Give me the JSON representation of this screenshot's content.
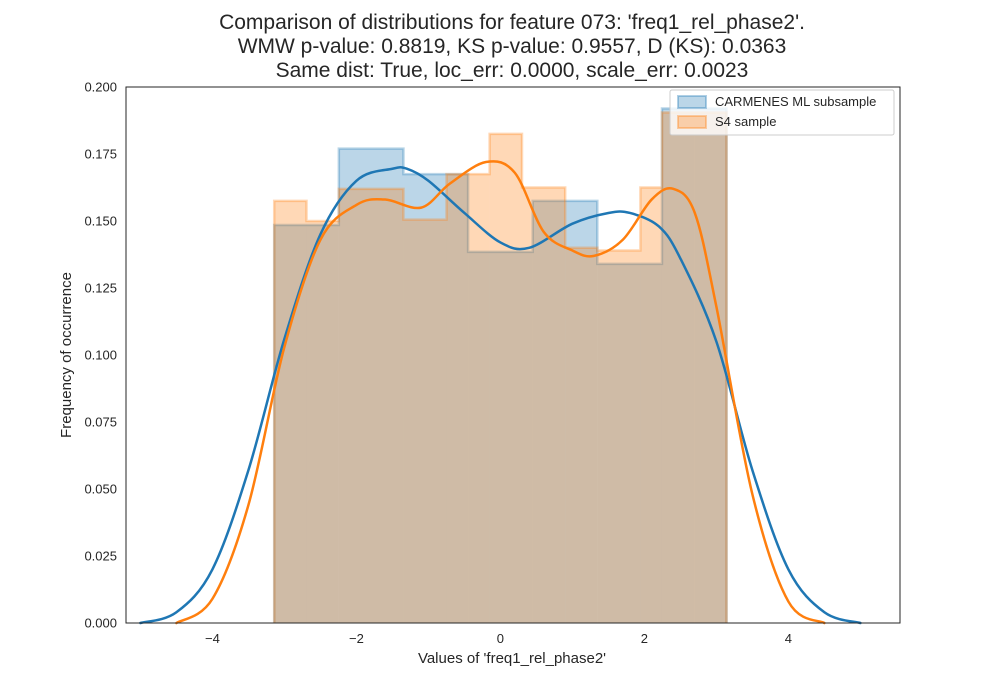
{
  "chart_data": {
    "type": "histogram",
    "title": [
      "Comparison of distributions for feature 073: 'freq1_rel_phase2'.",
      "WMW p-value: 0.8819, KS p-value: 0.9557, D (KS): 0.0363",
      "Same dist: True, loc_err: 0.0000, scale_err: 0.0023"
    ],
    "xlabel": "Values of 'freq1_rel_phase2'",
    "ylabel": "Frequency of occurrence",
    "xlim": [
      -5.2,
      5.55
    ],
    "ylim": [
      0.0,
      0.2
    ],
    "xticks": [
      -4,
      -2,
      0,
      2,
      4
    ],
    "yticks": [
      0.0,
      0.025,
      0.05,
      0.075,
      0.1,
      0.125,
      0.15,
      0.175,
      0.2
    ],
    "xtick_labels": [
      "−4",
      "−2",
      "0",
      "2",
      "4"
    ],
    "ytick_labels": [
      "0.000",
      "0.025",
      "0.050",
      "0.075",
      "0.100",
      "0.125",
      "0.150",
      "0.175",
      "0.200"
    ],
    "grid": false,
    "legend_position": "top-right",
    "bin_edges": [
      -3.14,
      -2.24,
      -1.34,
      -0.44,
      0.46,
      1.36,
      2.26,
      3.14
    ],
    "series": [
      {
        "name": "CARMENES ML subsample",
        "color": "#1f77b4",
        "hist_edges": [
          -3.1416,
          -2.244,
          -1.3464,
          -0.4488,
          0.4488,
          1.3464,
          2.244,
          2.6928,
          3.1416
        ],
        "hist_values": [
          0.1485,
          0.177,
          0.1675,
          0.1385,
          0.1575,
          0.134,
          0.192,
          0.192
        ],
        "kde_x": [
          -5.0,
          -4.5,
          -4.0,
          -3.5,
          -3.0,
          -2.5,
          -2.0,
          -1.5,
          -1.3,
          -1.0,
          -0.5,
          0.0,
          0.4,
          1.0,
          1.5,
          1.8,
          2.2,
          2.5,
          3.0,
          3.5,
          4.0,
          4.5,
          5.0
        ],
        "kde_y": [
          0.0,
          0.004,
          0.02,
          0.057,
          0.106,
          0.145,
          0.165,
          0.1695,
          0.1695,
          0.165,
          0.153,
          0.142,
          0.14,
          0.149,
          0.153,
          0.153,
          0.148,
          0.136,
          0.105,
          0.057,
          0.02,
          0.004,
          0.0
        ]
      },
      {
        "name": "S4 sample",
        "color": "#ff7f0e",
        "hist_edges": [
          -3.1416,
          -2.6928,
          -2.244,
          -1.3464,
          -0.748,
          -0.1496,
          0.3,
          0.9,
          1.3464,
          1.9448,
          2.244,
          3.1416
        ],
        "hist_values": [
          0.1575,
          0.15,
          0.162,
          0.1505,
          0.1675,
          0.1825,
          0.1625,
          0.14,
          0.139,
          0.1625,
          0.1905
        ],
        "kde_x": [
          -4.5,
          -4.0,
          -3.5,
          -3.0,
          -2.5,
          -2.0,
          -1.6,
          -1.1,
          -0.7,
          -0.2,
          0.2,
          0.6,
          1.0,
          1.3,
          1.7,
          2.1,
          2.4,
          2.7,
          3.0,
          3.5,
          4.0,
          4.5
        ],
        "kde_y": [
          0.0,
          0.009,
          0.044,
          0.103,
          0.143,
          0.156,
          0.158,
          0.155,
          0.164,
          0.172,
          0.168,
          0.146,
          0.139,
          0.137,
          0.143,
          0.158,
          0.162,
          0.153,
          0.118,
          0.048,
          0.008,
          0.0
        ]
      }
    ]
  }
}
